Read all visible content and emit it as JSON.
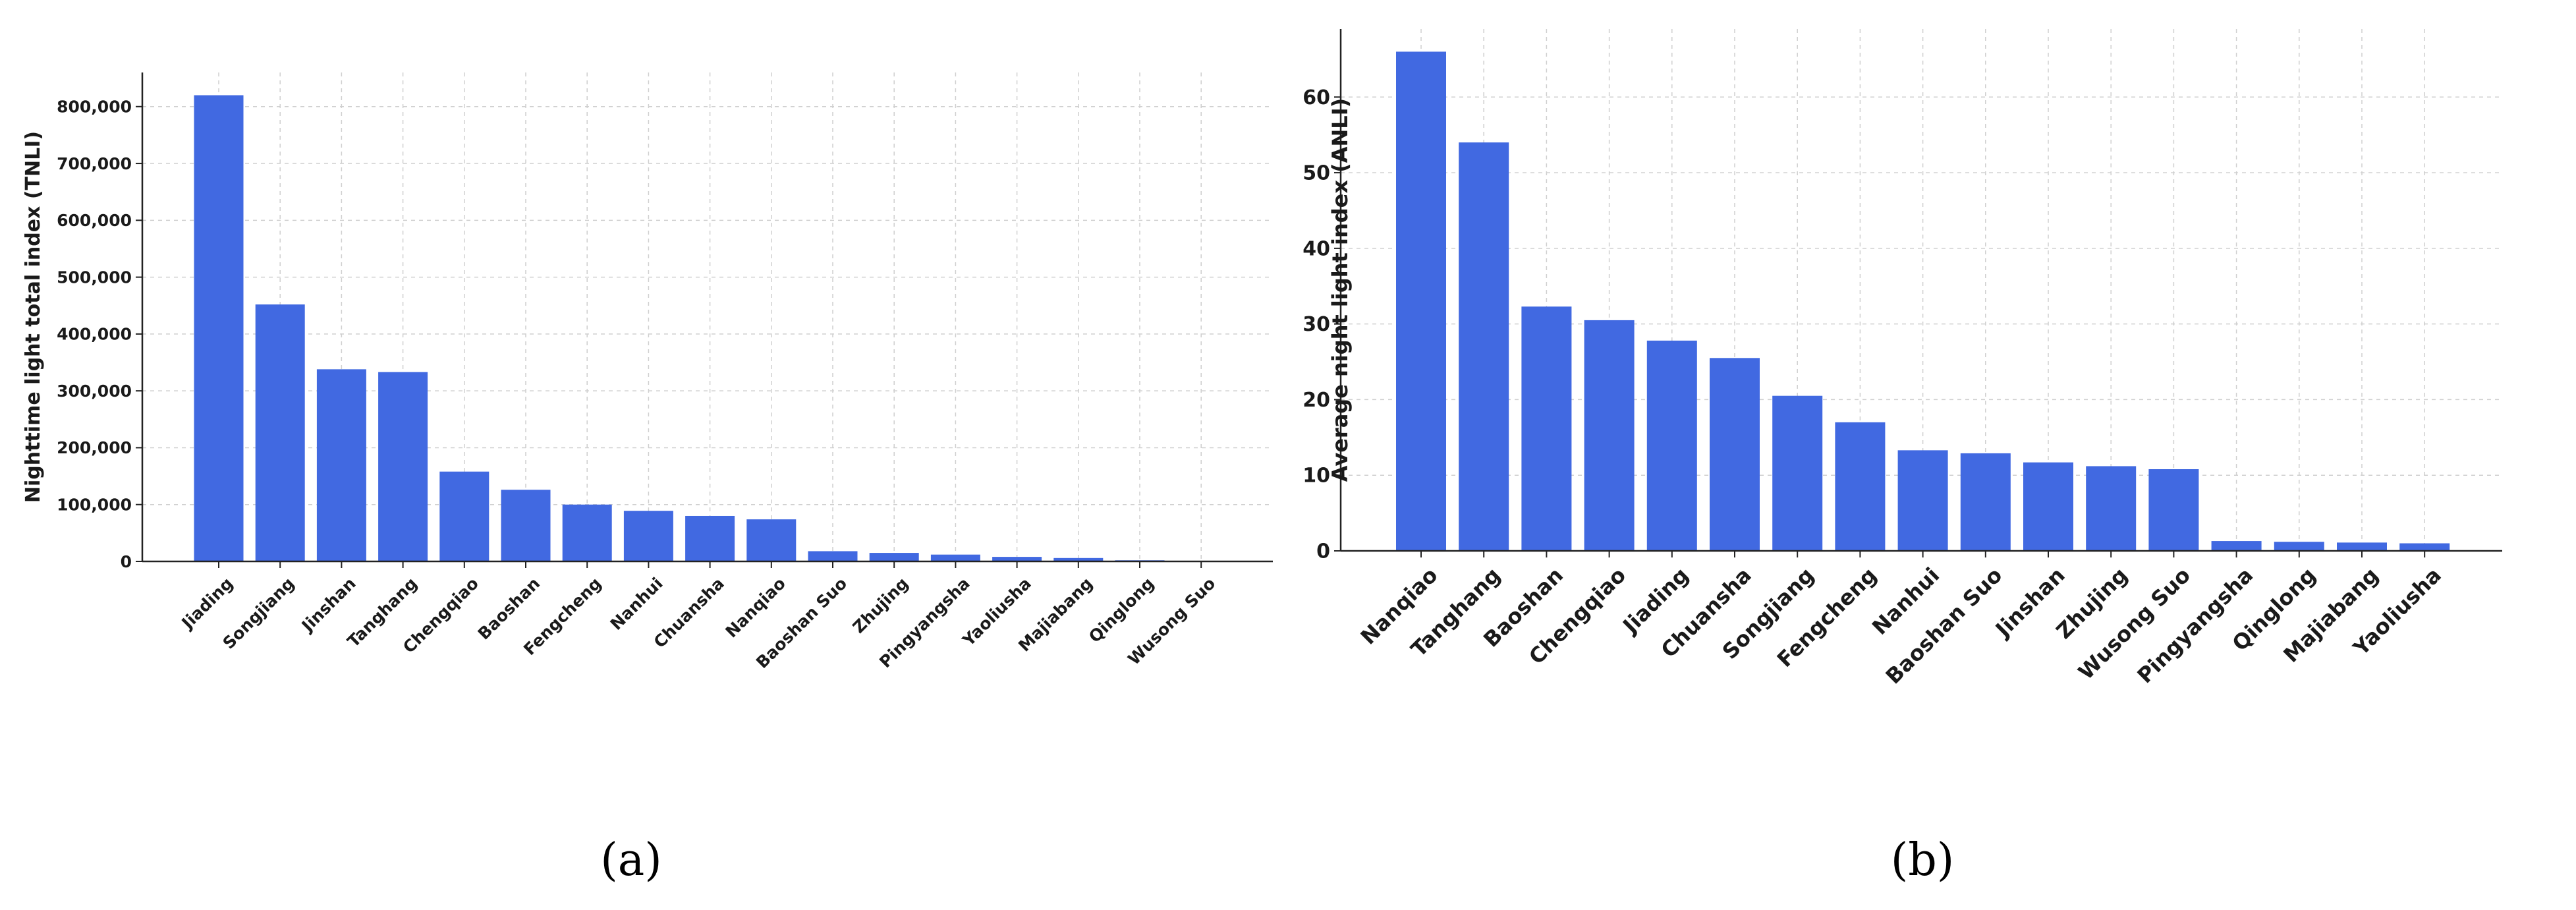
{
  "chart_data": [
    {
      "type": "bar",
      "panel_label": "(a)",
      "categories": [
        "Jiading",
        "Songjiang",
        "Jinshan",
        "Tanghang",
        "Chengqiao",
        "Baoshan",
        "Fengcheng",
        "Nanhui",
        "Chuansha",
        "Nanqiao",
        "Baoshan Suo",
        "Zhujing",
        "Pingyangsha",
        "Yaoliusha",
        "Majiabang",
        "Qinglong",
        "Wusong Suo"
      ],
      "values": [
        820000,
        452000,
        338000,
        333000,
        158000,
        126000,
        100000,
        89000,
        80000,
        74000,
        18000,
        15000,
        12000,
        8000,
        6000,
        2000,
        500
      ],
      "ylabel": "Nighttime light total index (TNLI)",
      "yticks": [
        0,
        100000,
        200000,
        300000,
        400000,
        500000,
        600000,
        700000,
        800000
      ],
      "ytick_labels": [
        "0",
        "100,000",
        "200,000",
        "300,000",
        "400,000",
        "500,000",
        "600,000",
        "700,000",
        "800,000"
      ],
      "ylim": [
        0,
        860000
      ],
      "grid": true,
      "bar_color": "#4169e1"
    },
    {
      "type": "bar",
      "panel_label": "(b)",
      "categories": [
        "Nanqiao",
        "Tanghang",
        "Baoshan",
        "Chengqiao",
        "Jiading",
        "Chuansha",
        "Songjiang",
        "Fengcheng",
        "Nanhui",
        "Baoshan Suo",
        "Jinshan",
        "Zhujing",
        "Wusong Suo",
        "Pingyangsha",
        "Qinglong",
        "Majiabang",
        "Yaoliusha"
      ],
      "values": [
        66,
        54,
        32.3,
        30.5,
        27.8,
        25.5,
        20.5,
        17,
        13.3,
        12.9,
        11.7,
        11.2,
        10.8,
        1.3,
        1.2,
        1.1,
        1.0
      ],
      "ylabel": "Average night light index (ANLI)",
      "yticks": [
        0,
        10,
        20,
        30,
        40,
        50,
        60
      ],
      "ytick_labels": [
        "0",
        "10",
        "20",
        "30",
        "40",
        "50",
        "60"
      ],
      "ylim": [
        0,
        69
      ],
      "grid": true,
      "bar_color": "#4169e1"
    }
  ]
}
